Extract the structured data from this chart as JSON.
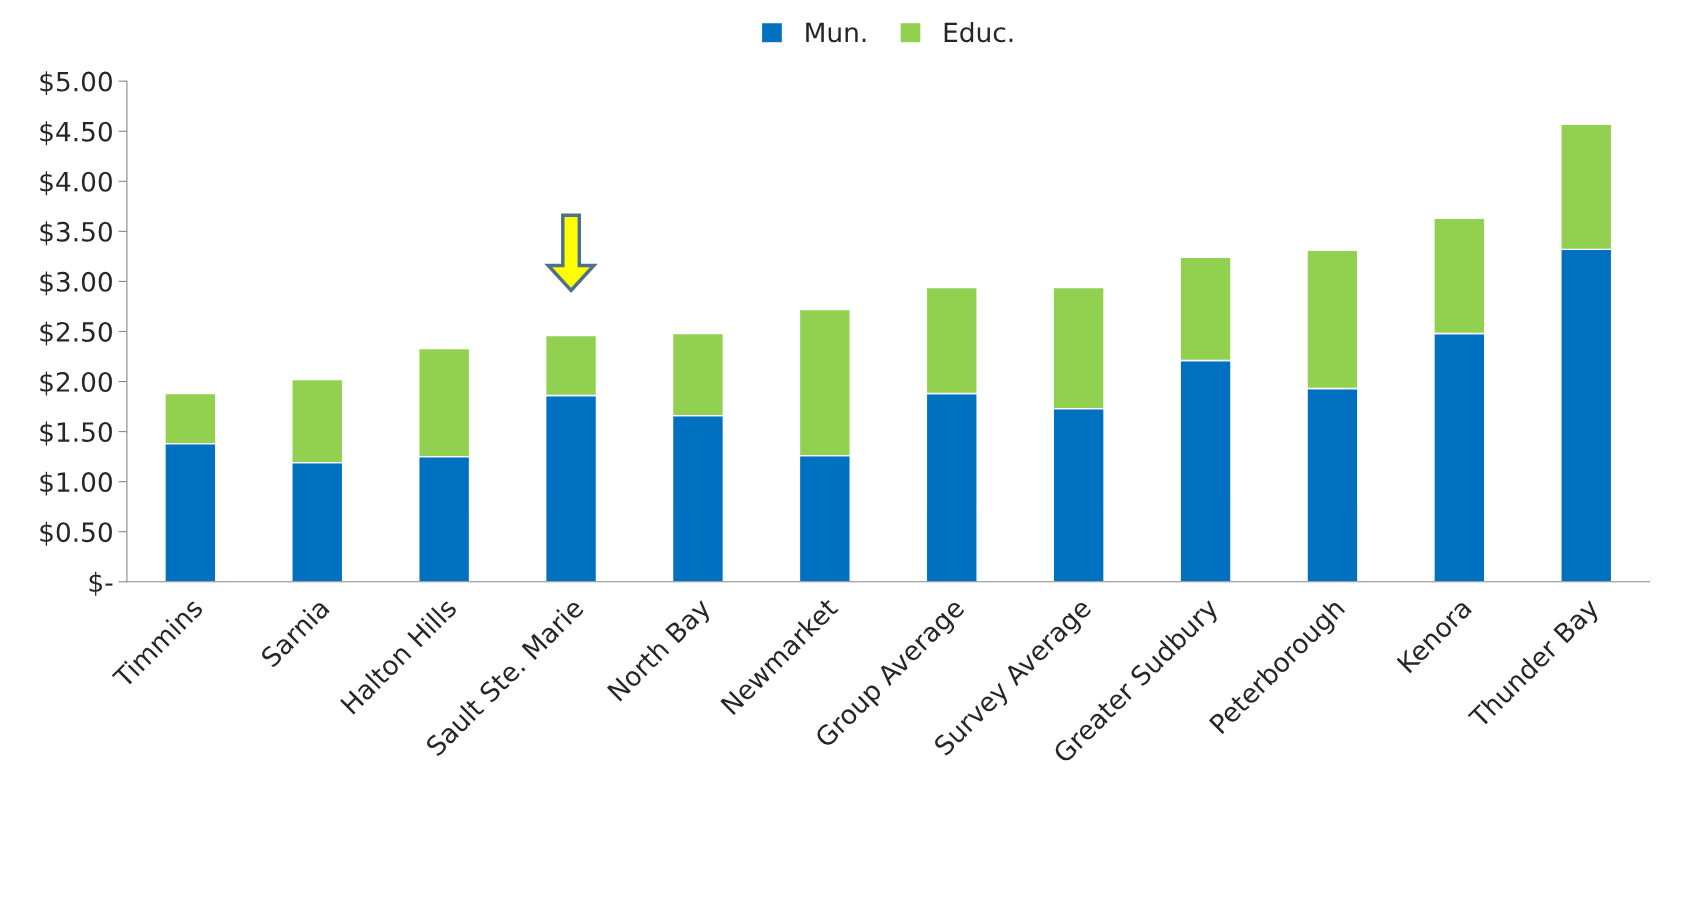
{
  "chart_data": {
    "type": "bar",
    "stacked": true,
    "categories": [
      "Timmins",
      "Sarnia",
      "Halton Hills",
      "Sault Ste. Marie",
      "North Bay",
      "Newmarket",
      "Group Average",
      "Survey Average",
      "Greater Sudbury",
      "Peterborough",
      "Kenora",
      "Thunder Bay"
    ],
    "series": [
      {
        "name": "Mun.",
        "color": "#0070c0",
        "values": [
          1.38,
          1.19,
          1.25,
          1.86,
          1.66,
          1.26,
          1.88,
          1.73,
          2.21,
          1.93,
          2.48,
          3.32
        ]
      },
      {
        "name": "Educ.",
        "color": "#92d050",
        "values": [
          0.5,
          0.83,
          1.08,
          0.6,
          0.82,
          1.46,
          1.06,
          1.21,
          1.03,
          1.38,
          1.15,
          1.25
        ]
      }
    ],
    "ylim": [
      0,
      5
    ],
    "yticks": [
      {
        "value": 0,
        "label": "$-"
      },
      {
        "value": 0.5,
        "label": "$0.50"
      },
      {
        "value": 1,
        "label": "$1.00"
      },
      {
        "value": 1.5,
        "label": "$1.50"
      },
      {
        "value": 2,
        "label": "$2.00"
      },
      {
        "value": 2.5,
        "label": "$2.50"
      },
      {
        "value": 3,
        "label": "$3.00"
      },
      {
        "value": 3.5,
        "label": "$3.50"
      },
      {
        "value": 4,
        "label": "$4.00"
      },
      {
        "value": 4.5,
        "label": "$4.50"
      },
      {
        "value": 5,
        "label": "$5.00"
      }
    ],
    "grid": false,
    "legend": "top"
  }
}
